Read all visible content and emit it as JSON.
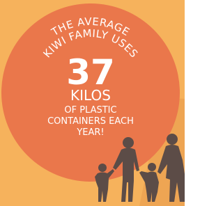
{
  "infographic": {
    "arc_lines": [
      "THE AVERAGE",
      "KIWI FAMILY USES"
    ],
    "number": 37,
    "unit": "KILOS",
    "lines": [
      "OF PLASTIC",
      "CONTAINERS EACH",
      "YEAR!"
    ]
  }
}
